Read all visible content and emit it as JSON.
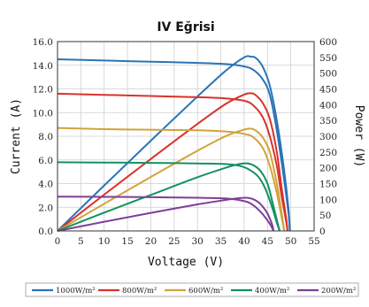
{
  "chart_data": {
    "type": "line",
    "title": "IV Eğrisi",
    "xlabel": "Voltage (V)",
    "ylabel_left": "Current (A)",
    "ylabel_right": "Power (W)",
    "xlim": [
      0,
      55
    ],
    "ylim_left": [
      0,
      16
    ],
    "ylim_right": [
      0,
      600
    ],
    "xticks": [
      "0",
      "5",
      "10",
      "15",
      "20",
      "25",
      "30",
      "35",
      "40",
      "45",
      "50",
      "55"
    ],
    "yticks_left": [
      "0.0",
      "2.0",
      "4.0",
      "6.0",
      "8.0",
      "10.0",
      "12.0",
      "14.0",
      "16.0"
    ],
    "yticks_right": [
      "0",
      "50",
      "100",
      "150",
      "200",
      "250",
      "300",
      "350",
      "400",
      "450",
      "500",
      "550",
      "600"
    ],
    "grid": true,
    "legend_position": "bottom",
    "series": [
      {
        "name": "1000W/m²",
        "color": "#2a74b8",
        "iv": [
          [
            0,
            14.5
          ],
          [
            10,
            14.4
          ],
          [
            20,
            14.3
          ],
          [
            30,
            14.2
          ],
          [
            36,
            14.1
          ],
          [
            40,
            13.9
          ],
          [
            42,
            13.6
          ],
          [
            44,
            12.8
          ],
          [
            45.5,
            11.5
          ],
          [
            47,
            8.5
          ],
          [
            48.5,
            4.5
          ],
          [
            49.5,
            1.5
          ],
          [
            49.8,
            0
          ]
        ],
        "pv": [
          [
            0,
            0
          ],
          [
            10,
            144
          ],
          [
            20,
            286
          ],
          [
            30,
            426
          ],
          [
            36,
            507
          ],
          [
            40,
            550
          ],
          [
            41.5,
            552
          ],
          [
            42.5,
            548
          ],
          [
            44,
            520
          ],
          [
            45.5,
            460
          ],
          [
            47,
            350
          ],
          [
            48.5,
            200
          ],
          [
            49.5,
            70
          ],
          [
            49.8,
            0
          ]
        ]
      },
      {
        "name": "800W/m²",
        "color": "#d9322b",
        "iv": [
          [
            0,
            11.6
          ],
          [
            10,
            11.5
          ],
          [
            20,
            11.4
          ],
          [
            30,
            11.3
          ],
          [
            36,
            11.2
          ],
          [
            40,
            11.0
          ],
          [
            42,
            10.6
          ],
          [
            44,
            9.6
          ],
          [
            45.5,
            8.0
          ],
          [
            47,
            5.5
          ],
          [
            48,
            3.0
          ],
          [
            49,
            0.8
          ],
          [
            49.3,
            0
          ]
        ],
        "pv": [
          [
            0,
            0
          ],
          [
            10,
            115
          ],
          [
            20,
            228
          ],
          [
            30,
            339
          ],
          [
            36,
            402
          ],
          [
            40,
            432
          ],
          [
            41.5,
            436
          ],
          [
            42.5,
            430
          ],
          [
            44,
            405
          ],
          [
            45.5,
            355
          ],
          [
            47,
            250
          ],
          [
            48,
            140
          ],
          [
            49,
            40
          ],
          [
            49.3,
            0
          ]
        ]
      },
      {
        "name": "600W/m²",
        "color": "#d1a33a",
        "iv": [
          [
            0,
            8.7
          ],
          [
            10,
            8.6
          ],
          [
            20,
            8.55
          ],
          [
            30,
            8.5
          ],
          [
            36,
            8.4
          ],
          [
            40,
            8.2
          ],
          [
            42,
            7.9
          ],
          [
            44,
            7.0
          ],
          [
            45.5,
            5.5
          ],
          [
            47,
            3.2
          ],
          [
            48,
            1.2
          ],
          [
            48.6,
            0
          ]
        ],
        "pv": [
          [
            0,
            0
          ],
          [
            10,
            86
          ],
          [
            20,
            171
          ],
          [
            30,
            254
          ],
          [
            36,
            300
          ],
          [
            40,
            321
          ],
          [
            41.5,
            324
          ],
          [
            42.5,
            318
          ],
          [
            44,
            296
          ],
          [
            45.5,
            250
          ],
          [
            47,
            150
          ],
          [
            48,
            60
          ],
          [
            48.6,
            0
          ]
        ]
      },
      {
        "name": "400W/m²",
        "color": "#139160",
        "iv": [
          [
            0,
            5.8
          ],
          [
            10,
            5.78
          ],
          [
            20,
            5.75
          ],
          [
            30,
            5.7
          ],
          [
            36,
            5.65
          ],
          [
            39,
            5.5
          ],
          [
            41,
            5.2
          ],
          [
            43,
            4.6
          ],
          [
            44.5,
            3.6
          ],
          [
            46,
            2.0
          ],
          [
            47,
            0.7
          ],
          [
            47.6,
            0
          ]
        ],
        "pv": [
          [
            0,
            0
          ],
          [
            10,
            58
          ],
          [
            20,
            114
          ],
          [
            30,
            170
          ],
          [
            36,
            200
          ],
          [
            39,
            212
          ],
          [
            40.5,
            214
          ],
          [
            42,
            208
          ],
          [
            43.5,
            190
          ],
          [
            45,
            150
          ],
          [
            46,
            95
          ],
          [
            47,
            35
          ],
          [
            47.6,
            0
          ]
        ]
      },
      {
        "name": "200W/m²",
        "color": "#7d3f98",
        "iv": [
          [
            0,
            2.9
          ],
          [
            10,
            2.88
          ],
          [
            20,
            2.85
          ],
          [
            30,
            2.8
          ],
          [
            36,
            2.75
          ],
          [
            39,
            2.6
          ],
          [
            41,
            2.4
          ],
          [
            42.5,
            2.0
          ],
          [
            44,
            1.4
          ],
          [
            45.5,
            0.6
          ],
          [
            46.3,
            0
          ]
        ],
        "pv": [
          [
            0,
            0
          ],
          [
            10,
            29
          ],
          [
            20,
            57
          ],
          [
            30,
            84
          ],
          [
            36,
            98
          ],
          [
            39,
            104
          ],
          [
            40.5,
            105
          ],
          [
            42,
            100
          ],
          [
            43.5,
            85
          ],
          [
            45,
            55
          ],
          [
            46,
            20
          ],
          [
            46.3,
            0
          ]
        ]
      }
    ]
  }
}
